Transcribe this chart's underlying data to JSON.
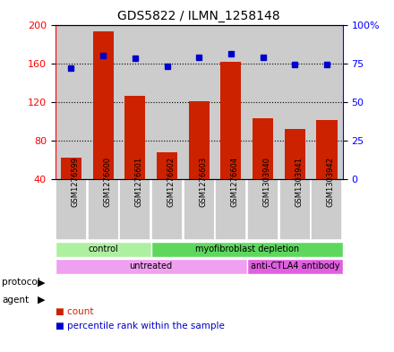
{
  "title": "GDS5822 / ILMN_1258148",
  "samples": [
    "GSM1276599",
    "GSM1276600",
    "GSM1276601",
    "GSM1276602",
    "GSM1276603",
    "GSM1276604",
    "GSM1303940",
    "GSM1303941",
    "GSM1303942"
  ],
  "counts": [
    62,
    193,
    126,
    68,
    121,
    161,
    103,
    92,
    101
  ],
  "percentiles": [
    72,
    80,
    78,
    73,
    79,
    81,
    79,
    74,
    74
  ],
  "ymin": 40,
  "ymax": 200,
  "yticks_left": [
    40,
    80,
    120,
    160,
    200
  ],
  "yticks_right_vals": [
    0,
    25,
    50,
    75,
    100
  ],
  "yticks_right_labels": [
    "0",
    "25",
    "50",
    "75",
    "100%"
  ],
  "protocol_groups": [
    {
      "label": "control",
      "start": 0,
      "end": 3,
      "color": "#adf0a0"
    },
    {
      "label": "myofibroblast depletion",
      "start": 3,
      "end": 9,
      "color": "#5dd85d"
    }
  ],
  "agent_groups": [
    {
      "label": "untreated",
      "start": 0,
      "end": 6,
      "color": "#f0a0f0"
    },
    {
      "label": "anti-CTLA4 antibody",
      "start": 6,
      "end": 9,
      "color": "#e060e0"
    }
  ],
  "bar_color": "#cc2200",
  "dot_color": "#0000cc",
  "protocol_label": "protocol",
  "agent_label": "agent",
  "legend_count": "count",
  "legend_percentile": "percentile rank within the sample",
  "col_bg_color": "#cccccc",
  "plot_bg_color": "#ffffff"
}
